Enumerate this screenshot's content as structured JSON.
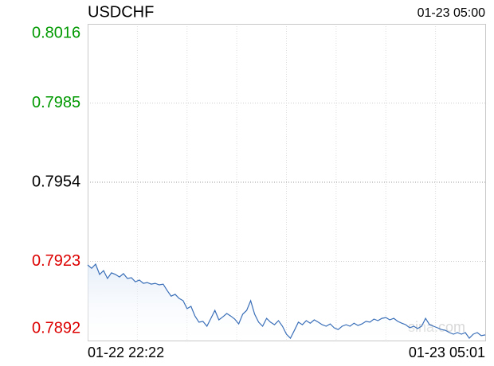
{
  "chart_data": {
    "type": "line",
    "title": "USDCHF",
    "timestamp": "01-23 05:00",
    "x_start_label": "01-22 22:22",
    "x_end_label": "01-23 05:01",
    "watermark": "sina.com",
    "ylim": [
      0.7892,
      0.8016
    ],
    "yticks": [
      0.8016,
      0.7985,
      0.7954,
      0.7923,
      0.7892
    ],
    "ytick_colors": [
      "#009900",
      "#009900",
      "#000000",
      "#dd0000",
      "#dd0000"
    ],
    "grid": true,
    "vertical_grid_count": 8,
    "series": [
      {
        "name": "USDCHF",
        "color": "#3a6fb8",
        "values": [
          0.79216,
          0.79203,
          0.79219,
          0.79179,
          0.79194,
          0.79163,
          0.79185,
          0.79179,
          0.79169,
          0.79182,
          0.79163,
          0.79166,
          0.7915,
          0.79157,
          0.79144,
          0.79147,
          0.79141,
          0.79144,
          0.79138,
          0.79141,
          0.79116,
          0.79094,
          0.79101,
          0.79085,
          0.79076,
          0.79045,
          0.79054,
          0.79016,
          0.78992,
          0.78995,
          0.78976,
          0.79007,
          0.79038,
          0.79001,
          0.79013,
          0.79026,
          0.79016,
          0.79004,
          0.78985,
          0.79023,
          0.79038,
          0.79076,
          0.79023,
          0.78992,
          0.78976,
          0.79007,
          0.78992,
          0.78982,
          0.78998,
          0.78976,
          0.78945,
          0.78929,
          0.7896,
          0.78992,
          0.78982,
          0.78998,
          0.78988,
          0.79001,
          0.78992,
          0.78982,
          0.78976,
          0.78985,
          0.7897,
          0.78963,
          0.78976,
          0.78982,
          0.78976,
          0.78988,
          0.78979,
          0.78985,
          0.78995,
          0.78992,
          0.79004,
          0.78998,
          0.79007,
          0.7901,
          0.79001,
          0.79007,
          0.78995,
          0.78988,
          0.78982,
          0.7897,
          0.78976,
          0.78967,
          0.78976,
          0.79007,
          0.78982,
          0.78976,
          0.7897,
          0.78963,
          0.7896,
          0.78951,
          0.78945,
          0.78951,
          0.78945,
          0.78951,
          0.78929,
          0.78945,
          0.78951,
          0.78939,
          0.78942
        ]
      }
    ]
  }
}
